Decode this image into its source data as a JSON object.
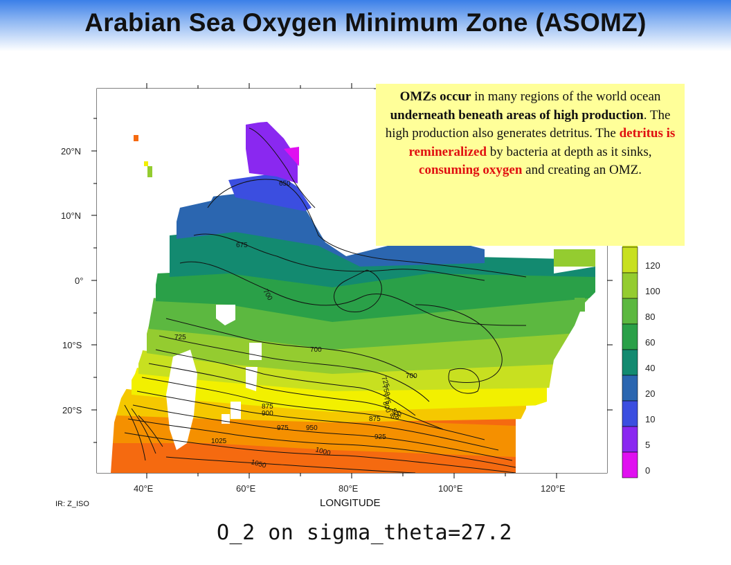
{
  "title": "Arabian Sea Oxygen Minimum Zone (ASOMZ)",
  "callout": {
    "s1_bold": "OMZs occur",
    "s1_rest": " in many regions of the world ocean ",
    "s2_bold": "underneath beneath areas of high production",
    "s3": ".  The high production also generates detritus.  The ",
    "s4_red": "detritus is remineralized",
    "s5": " by bacteria at depth as it sinks, ",
    "s6_red": "consuming oxygen",
    "s7": " and creating an OMZ."
  },
  "axes": {
    "x_title": "LONGITUDE",
    "x_ticks": [
      "40°E",
      "60°E",
      "80°E",
      "100°E",
      "120°E"
    ],
    "y_ticks": [
      "20°N",
      "10°N",
      "0°",
      "10°S",
      "20°S"
    ]
  },
  "colorbar": {
    "labels": [
      "120",
      "100",
      "80",
      "60",
      "40",
      "20",
      "10",
      "5",
      "0"
    ],
    "colors": [
      "#c8e020",
      "#94cc30",
      "#5cb840",
      "#2aa048",
      "#138a70",
      "#2b66b0",
      "#3b4ee0",
      "#8a28f0",
      "#e010f0"
    ]
  },
  "variable_label": "IR: Z_ISO",
  "caption": "O_2 on sigma_theta=27.2",
  "contour_labels": [
    "650",
    "675",
    "700",
    "700",
    "700",
    "725",
    "725",
    "750",
    "775",
    "800",
    "825",
    "850",
    "875",
    "875",
    "900",
    "925",
    "950",
    "975",
    "1000",
    "1025",
    "1050"
  ],
  "legend_colors": {
    "magenta": "#e010f0",
    "violet": "#8a28f0",
    "blue": "#3b4ee0",
    "steel_blue": "#2b66b0",
    "teal": "#138a70",
    "green": "#2aa048",
    "light_green": "#5cb840",
    "yellow_green": "#c8e020",
    "yellow": "#f2f000",
    "gold": "#f5c800",
    "orange": "#f59000",
    "dark_orange": "#f56a10"
  }
}
